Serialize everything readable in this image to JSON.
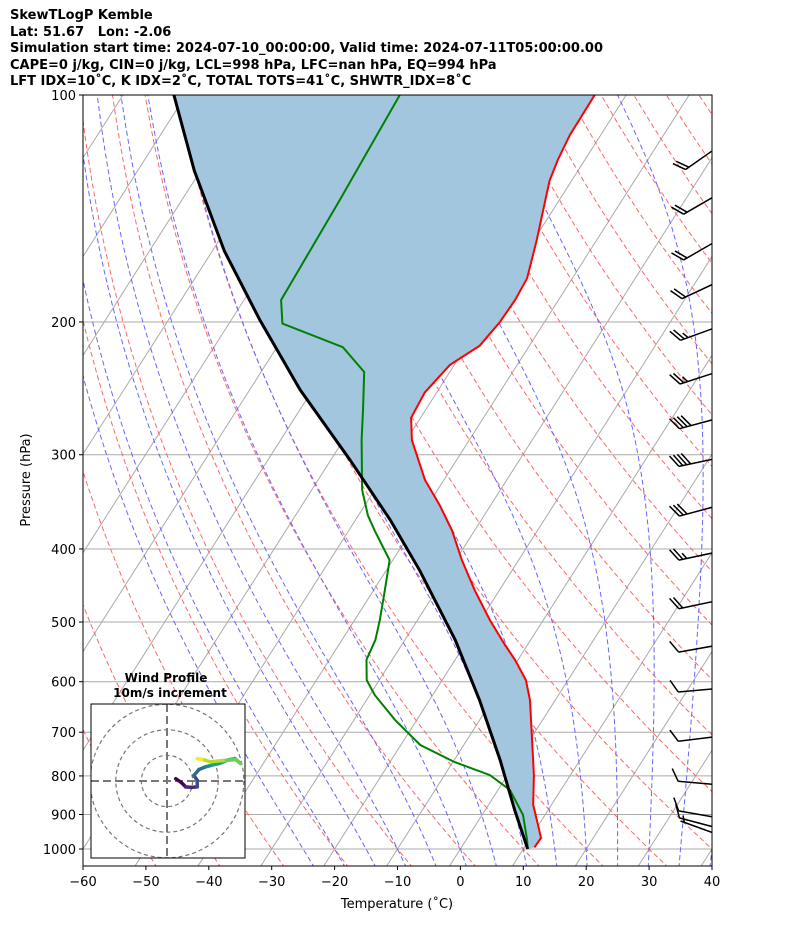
{
  "header": {
    "line1": "SkewTLogP Kemble",
    "line2": "Lat: 51.67   Lon: -2.06",
    "line3": "Simulation start time: 2024-07-10_00:00:00, Valid time: 2024-07-11T05:00:00.00",
    "line4": "CAPE=0 j/kg, CIN=0 j/kg, LCL=998 hPa, LFC=nan hPa, EQ=994 hPa",
    "line5": "LFT IDX=10$^\\circ$C, K IDX=2$^\\circ$C, TOTAL TOTS=41$^\\circ$C, SHWTR_IDX=8$^\\circ$C",
    "line5_display": "LFT IDX=10˚C, K IDX=2˚C, TOTAL TOTS=41˚C, SHWTR_IDX=8˚C"
  },
  "colors": {
    "temperature": "#ff0000",
    "dewpoint": "#008000",
    "parcel": "#000000",
    "cape_fill": "#a3c6df",
    "dry_adiabat": "#ff6666",
    "moist_adiabat": "#6666ff",
    "isotherm": "#aaaaaa",
    "isobar": "#aaaaaa"
  },
  "chart_data": {
    "type": "line",
    "subtype": "skew-t log-p",
    "xlabel": "Temperature ($^\\circ$C)",
    "xlabel_display": "Temperature (˚C)",
    "ylabel": "Pressure (hPa)",
    "xlim": [
      -60,
      40
    ],
    "ylim": [
      1053,
      100
    ],
    "xticks": [
      "−60",
      "−50",
      "−40",
      "−30",
      "−20",
      "−10",
      "0",
      "10",
      "20",
      "30",
      "40"
    ],
    "xtick_values": [
      -60,
      -50,
      -40,
      -30,
      -20,
      -10,
      0,
      10,
      20,
      30,
      40
    ],
    "yticks": [
      "100",
      "200",
      "300",
      "400",
      "500",
      "600",
      "700",
      "800",
      "900",
      "1000"
    ],
    "ytick_values": [
      100,
      200,
      300,
      400,
      500,
      600,
      700,
      800,
      900,
      1000
    ],
    "grid": true,
    "series": [
      {
        "name": "temperature",
        "p": [
          995,
          967,
          929,
          874,
          798,
          706,
          635,
          597,
          561,
          536,
          497,
          454,
          414,
          378,
          350,
          324,
          287,
          268,
          248,
          228,
          215,
          200,
          187,
          175,
          156,
          130,
          122,
          113,
          100
        ],
        "T": [
          11.6,
          11.7,
          9.9,
          7.1,
          4.2,
          -0.2,
          -4.0,
          -6.7,
          -10.5,
          -13.6,
          -18.5,
          -23.9,
          -29.0,
          -33.6,
          -38.1,
          -43.0,
          -49.1,
          -51.5,
          -51.9,
          -50.7,
          -47.9,
          -47.1,
          -46.9,
          -47.2,
          -49.5,
          -53.5,
          -54.3,
          -54.9,
          -55.0
        ]
      },
      {
        "name": "dewpoint",
        "p": [
          1000,
          973,
          901,
          835,
          798,
          767,
          728,
          674,
          625,
          597,
          561,
          528,
          497,
          454,
          414,
          378,
          361,
          334,
          287,
          262,
          233,
          216,
          201,
          187,
          138,
          100
        ],
        "T": [
          10.7,
          9.7,
          6.5,
          1.9,
          -2.8,
          -9.7,
          -16.9,
          -23.5,
          -29.2,
          -32.0,
          -34.1,
          -34.7,
          -36.0,
          -38.2,
          -40.5,
          -45.9,
          -48.5,
          -52.0,
          -57.1,
          -59.9,
          -63.6,
          -69.5,
          -81.5,
          -84.1,
          -84.9,
          -86.0
        ]
      },
      {
        "name": "parcel",
        "p": [
          1000,
          888,
          762,
          635,
          528,
          427,
          366,
          305,
          246,
          199,
          161,
          126,
          100
        ],
        "T": [
          10.7,
          4.7,
          -2.7,
          -12.0,
          -22.0,
          -34.7,
          -44.5,
          -56.9,
          -72.0,
          -85.4,
          -98.1,
          -111.0,
          -121.9
        ]
      }
    ],
    "dry_adiabats_T1000_C": [
      -50,
      -40,
      -30,
      -20,
      -10,
      0,
      10,
      20,
      30,
      40,
      50,
      60,
      70,
      80,
      90,
      100,
      110,
      120,
      130,
      140,
      150,
      160,
      170,
      180
    ],
    "moist_adiabats_T1000_C": [
      -25,
      -20,
      -15,
      -10,
      -5,
      0,
      5,
      10,
      15,
      20,
      25,
      30,
      35,
      40
    ],
    "wind_barbs": [
      {
        "p": 121,
        "dir": 235,
        "kt": 20
      },
      {
        "p": 140,
        "dir": 240,
        "kt": 20
      },
      {
        "p": 161,
        "dir": 240,
        "kt": 20
      },
      {
        "p": 183,
        "dir": 245,
        "kt": 20
      },
      {
        "p": 210,
        "dir": 250,
        "kt": 25
      },
      {
        "p": 241,
        "dir": 252,
        "kt": 25
      },
      {
        "p": 278,
        "dir": 255,
        "kt": 40
      },
      {
        "p": 314,
        "dir": 258,
        "kt": 40
      },
      {
        "p": 363,
        "dir": 255,
        "kt": 30
      },
      {
        "p": 418,
        "dir": 258,
        "kt": 25
      },
      {
        "p": 485,
        "dir": 258,
        "kt": 20
      },
      {
        "p": 556,
        "dir": 260,
        "kt": 10
      },
      {
        "p": 635,
        "dir": 265,
        "kt": 10
      },
      {
        "p": 735,
        "dir": 263,
        "kt": 10
      },
      {
        "p": 853,
        "dir": 275,
        "kt": 10
      },
      {
        "p": 944,
        "dir": 280,
        "kt": 10
      },
      {
        "p": 975,
        "dir": 285,
        "kt": 10
      },
      {
        "p": 995,
        "dir": 290,
        "kt": 5
      }
    ],
    "hodograph": {
      "title": "Wind Profile",
      "subtitle": "10m/s increment",
      "rings_ms": [
        10,
        20,
        30
      ],
      "u": [
        3.4,
        5.5,
        7.3,
        9.5,
        11.8,
        11.8,
        10.5,
        12.5,
        15.0,
        17.5,
        20.3,
        24.0,
        26.5,
        28.8,
        26.8,
        22.0,
        17.0,
        13.5,
        11.8
      ],
      "v": [
        0.9,
        -0.5,
        -2.3,
        -2.5,
        -2.3,
        0.3,
        2.2,
        4.5,
        5.5,
        6.2,
        6.8,
        8.3,
        8.8,
        6.8,
        8.3,
        8.0,
        7.5,
        8.5,
        8.7
      ]
    }
  }
}
